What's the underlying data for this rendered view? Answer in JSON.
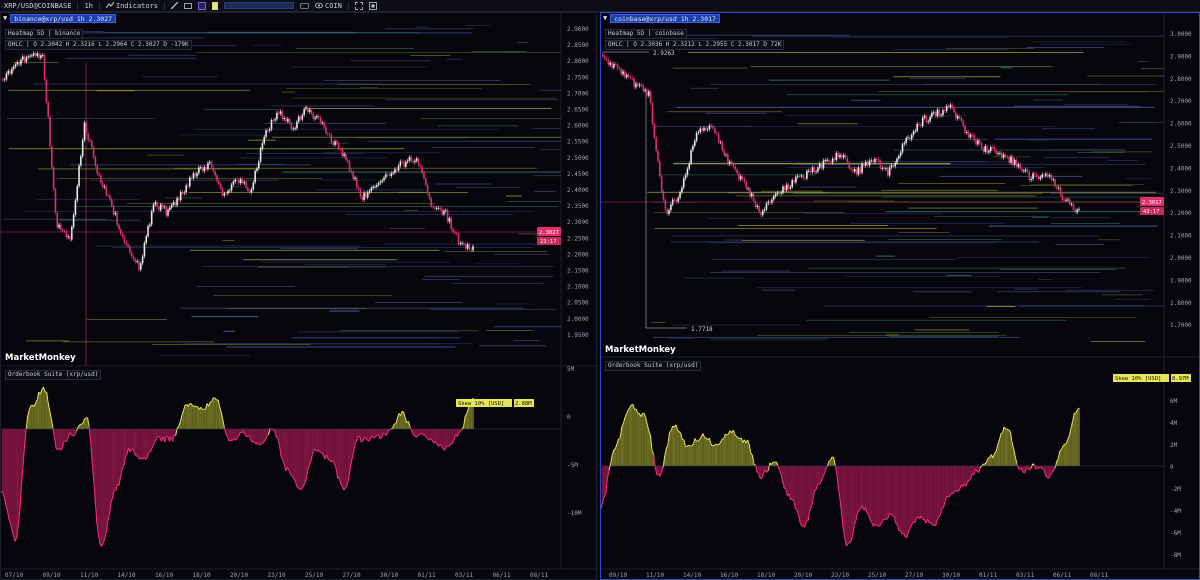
{
  "toolbar": {
    "symbol": "XRP/USD@COINBASE",
    "interval": "1h",
    "indicators_label": "Indicators",
    "coin_label": "COIN",
    "colors": {
      "purple": "#7b63d8",
      "yellow": "#e8e88a"
    }
  },
  "panels": [
    {
      "id": "left",
      "title": "binance@xrp/usd 1h 2.3027",
      "heatmap_label": "Heatmap 5D | binance",
      "ohlc": "OHLC | O 2.3042 H 2.3216 L 2.2964 C 2.3027 D -179K",
      "brand": "MarketMonkey",
      "suite_label": "Orderbook Suite (xrp/usd)",
      "price_axis": [
        "2.9000",
        "2.8500",
        "2.8000",
        "2.7500",
        "2.7000",
        "2.6500",
        "2.6000",
        "2.5500",
        "2.5000",
        "2.4500",
        "2.4000",
        "2.3500",
        "2.3000",
        "2.2500",
        "2.2000",
        "2.1500",
        "2.1000",
        "2.0500",
        "2.0000",
        "1.9500"
      ],
      "current_price": "2.3027",
      "current_price_sub": "23:17",
      "skew_label": "Skew 10% [USD]",
      "skew_value": "2.88M",
      "skew_axis": [
        "5M",
        "0",
        "-5M",
        "-10M"
      ],
      "date_axis": [
        "07/10",
        "09/10",
        "11/10",
        "14/10",
        "16/10",
        "18/10",
        "20/10",
        "23/10",
        "25/10",
        "27/10",
        "30/10",
        "01/11",
        "03/11",
        "06/11",
        "08/11"
      ]
    },
    {
      "id": "right",
      "title": "coinbase@xrp/usd 1h 2.3017",
      "heatmap_label": "Heatmap 5D | coinbase",
      "ohlc": "OHLC | O 2.3036 H 2.3212 L 2.2955 C 2.3017 D 72K",
      "brand": "MarketMonkey",
      "suite_label": "Orderbook Suite (xrp/usd)",
      "price_axis": [
        "3.0000",
        "2.9000",
        "2.8000",
        "2.7000",
        "2.6000",
        "2.5000",
        "2.4000",
        "2.3000",
        "2.2000",
        "2.1000",
        "2.0000",
        "1.9000",
        "1.8000",
        "1.7000"
      ],
      "current_price": "2.3017",
      "current_price_sub": "43:17",
      "high_marker": "2.9263",
      "low_marker": "1.7718",
      "skew_label": "Skew 10% [USD]",
      "skew_value": "8.97M",
      "skew_axis": [
        "6M",
        "4M",
        "2M",
        "0",
        "-2M",
        "-4M",
        "-6M",
        "-8M"
      ],
      "date_axis": [
        "09/10",
        "11/10",
        "14/10",
        "16/10",
        "18/10",
        "20/10",
        "23/10",
        "25/10",
        "27/10",
        "30/10",
        "01/11",
        "03/11",
        "06/11",
        "08/11"
      ]
    }
  ]
}
